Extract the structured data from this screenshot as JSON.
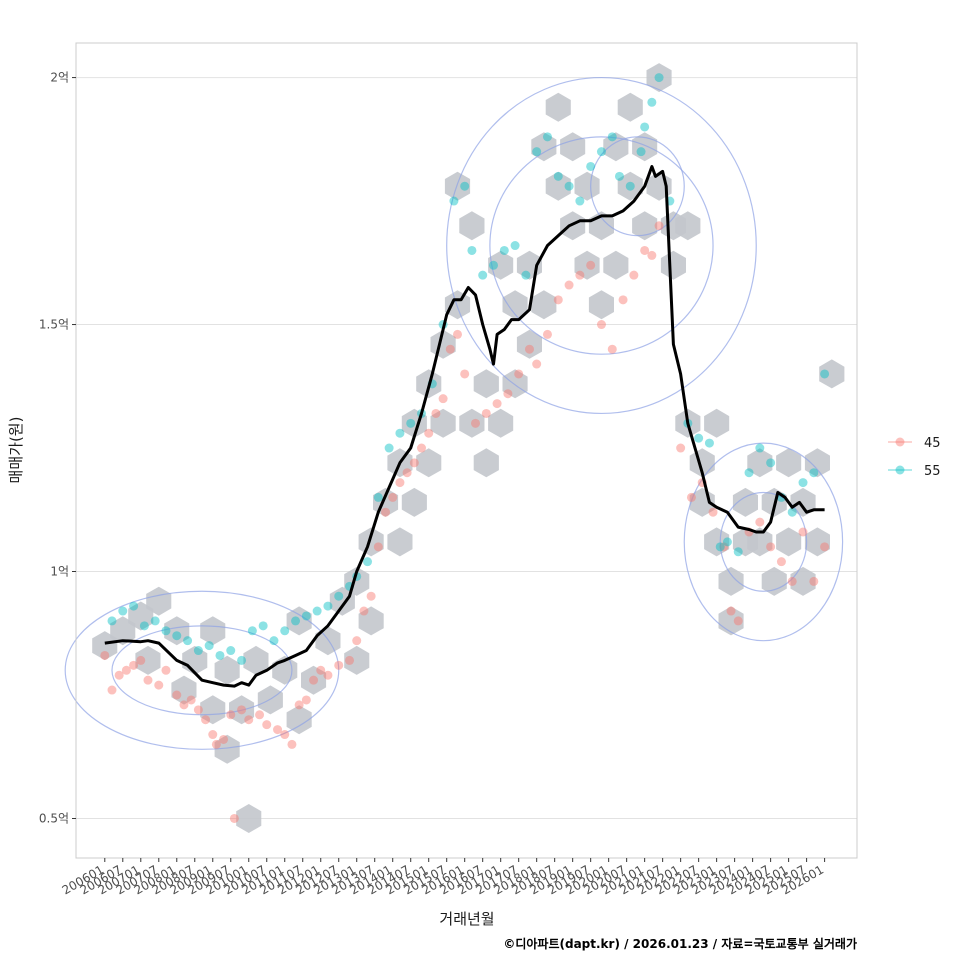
{
  "chart_data": {
    "type": "scatter",
    "title": "",
    "xlabel": "거래년월",
    "ylabel": "매매가(원)",
    "caption": "©디아파트(dapt.kr) / 2026.01.23 / 자료=국토교통부 실거래가",
    "y_unit": "억",
    "ylim": [
      0.42,
      2.07
    ],
    "xlim": [
      2005.2,
      2026.9
    ],
    "y_ticks": [
      {
        "value": 0.5,
        "label": "0.5억"
      },
      {
        "value": 1.0,
        "label": "1억"
      },
      {
        "value": 1.5,
        "label": "1.5억"
      },
      {
        "value": 2.0,
        "label": "2억"
      }
    ],
    "x_ticks": [
      "200601",
      "200607",
      "200701",
      "200707",
      "200801",
      "200807",
      "200901",
      "200907",
      "201001",
      "201007",
      "201101",
      "201107",
      "201201",
      "201207",
      "201301",
      "201307",
      "201401",
      "201407",
      "201501",
      "201507",
      "201601",
      "201607",
      "201701",
      "201707",
      "201801",
      "201807",
      "201901",
      "201907",
      "202001",
      "202007",
      "202101",
      "202107",
      "202201",
      "202207",
      "202301",
      "202307",
      "202401",
      "202407",
      "202501",
      "202507",
      "202601"
    ],
    "legend": {
      "position": "right",
      "items": [
        {
          "name": "45",
          "color": "#F8766D"
        },
        {
          "name": "55",
          "color": "#00BFC4"
        }
      ]
    },
    "colors": {
      "hex": "#c3c7cc",
      "contour": "#8fa2e6",
      "trend": "#000000",
      "grid": "#e2e2e2",
      "panel_border": "#cccccc",
      "highlight": "#cfe9ff"
    },
    "trend_line": {
      "name": "moving-average",
      "x": [
        2006.0,
        2006.5,
        2007.0,
        2007.2,
        2007.5,
        2008.0,
        2008.3,
        2008.7,
        2009.0,
        2009.3,
        2009.6,
        2009.8,
        2010.0,
        2010.2,
        2010.5,
        2010.8,
        2011.0,
        2011.3,
        2011.6,
        2011.9,
        2012.2,
        2012.5,
        2012.8,
        2013.0,
        2013.3,
        2013.6,
        2013.9,
        2014.2,
        2014.5,
        2014.8,
        2015.1,
        2015.3,
        2015.5,
        2015.7,
        2015.9,
        2016.1,
        2016.3,
        2016.5,
        2016.7,
        2016.8,
        2016.9,
        2017.1,
        2017.3,
        2017.5,
        2017.8,
        2018.0,
        2018.3,
        2018.6,
        2018.9,
        2019.2,
        2019.5,
        2019.8,
        2020.1,
        2020.4,
        2020.7,
        2021.0,
        2021.1,
        2021.2,
        2021.3,
        2021.5,
        2021.6,
        2021.8,
        2022.0,
        2022.2,
        2022.4,
        2022.6,
        2022.8,
        2023.0,
        2023.3,
        2023.6,
        2023.9,
        2024.1,
        2024.3,
        2024.5,
        2024.7,
        2024.9,
        2025.1,
        2025.3,
        2025.5,
        2025.7,
        2026.0
      ],
      "y": [
        0.855,
        0.86,
        0.858,
        0.86,
        0.855,
        0.82,
        0.81,
        0.78,
        0.775,
        0.77,
        0.768,
        0.775,
        0.77,
        0.79,
        0.8,
        0.815,
        0.82,
        0.83,
        0.84,
        0.87,
        0.89,
        0.92,
        0.95,
        1.0,
        1.05,
        1.12,
        1.17,
        1.22,
        1.25,
        1.32,
        1.4,
        1.46,
        1.52,
        1.55,
        1.55,
        1.575,
        1.56,
        1.5,
        1.45,
        1.42,
        1.48,
        1.49,
        1.51,
        1.51,
        1.53,
        1.62,
        1.66,
        1.68,
        1.7,
        1.71,
        1.71,
        1.72,
        1.72,
        1.73,
        1.75,
        1.78,
        1.8,
        1.82,
        1.8,
        1.81,
        1.78,
        1.46,
        1.4,
        1.3,
        1.25,
        1.2,
        1.14,
        1.13,
        1.12,
        1.09,
        1.085,
        1.08,
        1.08,
        1.1,
        1.16,
        1.15,
        1.13,
        1.14,
        1.12,
        1.125,
        1.125
      ]
    },
    "series": [
      {
        "name": "45",
        "points": [
          [
            2006.0,
            0.83
          ],
          [
            2006.2,
            0.76
          ],
          [
            2006.4,
            0.79
          ],
          [
            2006.6,
            0.8
          ],
          [
            2006.8,
            0.81
          ],
          [
            2007.0,
            0.82
          ],
          [
            2007.2,
            0.78
          ],
          [
            2007.5,
            0.77
          ],
          [
            2007.7,
            0.8
          ],
          [
            2008.0,
            0.75
          ],
          [
            2008.2,
            0.73
          ],
          [
            2008.4,
            0.74
          ],
          [
            2008.6,
            0.72
          ],
          [
            2008.8,
            0.7
          ],
          [
            2009.0,
            0.67
          ],
          [
            2009.1,
            0.65
          ],
          [
            2009.3,
            0.66
          ],
          [
            2009.5,
            0.71
          ],
          [
            2009.6,
            0.5
          ],
          [
            2009.8,
            0.72
          ],
          [
            2010.0,
            0.7
          ],
          [
            2010.3,
            0.71
          ],
          [
            2010.5,
            0.69
          ],
          [
            2010.8,
            0.68
          ],
          [
            2011.0,
            0.67
          ],
          [
            2011.2,
            0.65
          ],
          [
            2011.4,
            0.73
          ],
          [
            2011.6,
            0.74
          ],
          [
            2011.8,
            0.78
          ],
          [
            2012.0,
            0.8
          ],
          [
            2012.2,
            0.79
          ],
          [
            2012.5,
            0.81
          ],
          [
            2012.8,
            0.82
          ],
          [
            2013.0,
            0.86
          ],
          [
            2013.2,
            0.92
          ],
          [
            2013.4,
            0.95
          ],
          [
            2013.6,
            1.05
          ],
          [
            2013.8,
            1.12
          ],
          [
            2014.0,
            1.15
          ],
          [
            2014.2,
            1.18
          ],
          [
            2014.4,
            1.2
          ],
          [
            2014.6,
            1.22
          ],
          [
            2014.8,
            1.25
          ],
          [
            2015.0,
            1.28
          ],
          [
            2015.2,
            1.32
          ],
          [
            2015.4,
            1.35
          ],
          [
            2015.6,
            1.45
          ],
          [
            2015.8,
            1.48
          ],
          [
            2016.0,
            1.4
          ],
          [
            2016.3,
            1.3
          ],
          [
            2016.6,
            1.32
          ],
          [
            2016.9,
            1.34
          ],
          [
            2017.2,
            1.36
          ],
          [
            2017.5,
            1.4
          ],
          [
            2017.8,
            1.45
          ],
          [
            2018.0,
            1.42
          ],
          [
            2018.3,
            1.48
          ],
          [
            2018.6,
            1.55
          ],
          [
            2018.9,
            1.58
          ],
          [
            2019.2,
            1.6
          ],
          [
            2019.5,
            1.62
          ],
          [
            2019.8,
            1.5
          ],
          [
            2020.1,
            1.45
          ],
          [
            2020.4,
            1.55
          ],
          [
            2020.7,
            1.6
          ],
          [
            2021.0,
            1.65
          ],
          [
            2021.2,
            1.64
          ],
          [
            2021.4,
            1.7
          ],
          [
            2022.0,
            1.25
          ],
          [
            2022.3,
            1.15
          ],
          [
            2022.6,
            1.18
          ],
          [
            2022.9,
            1.12
          ],
          [
            2023.2,
            1.05
          ],
          [
            2023.4,
            0.92
          ],
          [
            2023.6,
            0.9
          ],
          [
            2023.9,
            1.08
          ],
          [
            2024.2,
            1.1
          ],
          [
            2024.5,
            1.05
          ],
          [
            2024.8,
            1.02
          ],
          [
            2025.1,
            0.98
          ],
          [
            2025.4,
            1.08
          ],
          [
            2025.7,
            0.98
          ],
          [
            2026.0,
            1.05
          ]
        ]
      },
      {
        "name": "55",
        "points": [
          [
            2006.2,
            0.9
          ],
          [
            2006.5,
            0.92
          ],
          [
            2006.8,
            0.93
          ],
          [
            2007.1,
            0.89
          ],
          [
            2007.4,
            0.9
          ],
          [
            2007.7,
            0.88
          ],
          [
            2008.0,
            0.87
          ],
          [
            2008.3,
            0.86
          ],
          [
            2008.6,
            0.84
          ],
          [
            2008.9,
            0.85
          ],
          [
            2009.2,
            0.83
          ],
          [
            2009.5,
            0.84
          ],
          [
            2009.8,
            0.82
          ],
          [
            2010.1,
            0.88
          ],
          [
            2010.4,
            0.89
          ],
          [
            2010.7,
            0.86
          ],
          [
            2011.0,
            0.88
          ],
          [
            2011.3,
            0.9
          ],
          [
            2011.6,
            0.91
          ],
          [
            2011.9,
            0.92
          ],
          [
            2012.2,
            0.93
          ],
          [
            2012.5,
            0.95
          ],
          [
            2012.8,
            0.97
          ],
          [
            2013.0,
            0.99
          ],
          [
            2013.3,
            1.02
          ],
          [
            2013.6,
            1.15
          ],
          [
            2013.9,
            1.25
          ],
          [
            2014.2,
            1.28
          ],
          [
            2014.5,
            1.3
          ],
          [
            2014.8,
            1.32
          ],
          [
            2015.1,
            1.38
          ],
          [
            2015.4,
            1.5
          ],
          [
            2015.7,
            1.75
          ],
          [
            2016.0,
            1.78
          ],
          [
            2016.2,
            1.65
          ],
          [
            2016.5,
            1.6
          ],
          [
            2016.8,
            1.62
          ],
          [
            2017.1,
            1.65
          ],
          [
            2017.4,
            1.66
          ],
          [
            2017.7,
            1.6
          ],
          [
            2018.0,
            1.85
          ],
          [
            2018.3,
            1.88
          ],
          [
            2018.6,
            1.8
          ],
          [
            2018.9,
            1.78
          ],
          [
            2019.2,
            1.75
          ],
          [
            2019.5,
            1.82
          ],
          [
            2019.8,
            1.85
          ],
          [
            2020.1,
            1.88
          ],
          [
            2020.3,
            1.8
          ],
          [
            2020.6,
            1.78
          ],
          [
            2020.9,
            1.85
          ],
          [
            2021.0,
            1.9
          ],
          [
            2021.2,
            1.95
          ],
          [
            2021.4,
            2.0
          ],
          [
            2021.7,
            1.75
          ],
          [
            2022.2,
            1.3
          ],
          [
            2022.5,
            1.27
          ],
          [
            2022.8,
            1.26
          ],
          [
            2023.1,
            1.05
          ],
          [
            2023.3,
            1.06
          ],
          [
            2023.6,
            1.04
          ],
          [
            2023.9,
            1.2
          ],
          [
            2024.2,
            1.25
          ],
          [
            2024.5,
            1.22
          ],
          [
            2024.8,
            1.15
          ],
          [
            2025.1,
            1.12
          ],
          [
            2025.4,
            1.18
          ],
          [
            2025.7,
            1.2
          ],
          [
            2026.0,
            1.4
          ]
        ]
      }
    ],
    "hex_bins": [
      [
        2006.0,
        0.85
      ],
      [
        2006.5,
        0.88
      ],
      [
        2007.0,
        0.91
      ],
      [
        2007.2,
        0.82
      ],
      [
        2007.5,
        0.94
      ],
      [
        2008.0,
        0.88
      ],
      [
        2008.5,
        0.82
      ],
      [
        2008.2,
        0.76
      ],
      [
        2009.0,
        0.88
      ],
      [
        2009.4,
        0.8
      ],
      [
        2009.0,
        0.72
      ],
      [
        2009.4,
        0.64
      ],
      [
        2009.8,
        0.72
      ],
      [
        2010.0,
        0.5
      ],
      [
        2010.2,
        0.82
      ],
      [
        2010.6,
        0.74
      ],
      [
        2011.0,
        0.8
      ],
      [
        2011.4,
        0.9
      ],
      [
        2011.4,
        0.7
      ],
      [
        2011.8,
        0.78
      ],
      [
        2012.2,
        0.86
      ],
      [
        2012.6,
        0.94
      ],
      [
        2013.0,
        0.98
      ],
      [
        2013.0,
        0.82
      ],
      [
        2013.4,
        0.9
      ],
      [
        2013.4,
        1.06
      ],
      [
        2013.8,
        1.14
      ],
      [
        2014.2,
        1.22
      ],
      [
        2014.2,
        1.06
      ],
      [
        2014.6,
        1.3
      ],
      [
        2014.6,
        1.14
      ],
      [
        2015.0,
        1.38
      ],
      [
        2015.0,
        1.22
      ],
      [
        2015.4,
        1.46
      ],
      [
        2015.4,
        1.3
      ],
      [
        2015.8,
        1.54
      ],
      [
        2015.8,
        1.78
      ],
      [
        2016.2,
        1.7
      ],
      [
        2016.2,
        1.3
      ],
      [
        2016.6,
        1.22
      ],
      [
        2016.6,
        1.38
      ],
      [
        2017.0,
        1.3
      ],
      [
        2017.0,
        1.62
      ],
      [
        2017.4,
        1.54
      ],
      [
        2017.4,
        1.38
      ],
      [
        2017.8,
        1.62
      ],
      [
        2017.8,
        1.46
      ],
      [
        2018.2,
        1.54
      ],
      [
        2018.2,
        1.86
      ],
      [
        2018.6,
        1.78
      ],
      [
        2018.6,
        1.94
      ],
      [
        2019.0,
        1.7
      ],
      [
        2019.0,
        1.86
      ],
      [
        2019.4,
        1.62
      ],
      [
        2019.4,
        1.78
      ],
      [
        2019.8,
        1.54
      ],
      [
        2019.8,
        1.7
      ],
      [
        2020.2,
        1.86
      ],
      [
        2020.2,
        1.62
      ],
      [
        2020.6,
        1.94
      ],
      [
        2020.6,
        1.78
      ],
      [
        2021.0,
        1.86
      ],
      [
        2021.0,
        1.7
      ],
      [
        2021.4,
        2.0
      ],
      [
        2021.4,
        1.78
      ],
      [
        2021.8,
        1.62
      ],
      [
        2021.8,
        1.7
      ],
      [
        2022.2,
        1.7
      ],
      [
        2022.2,
        1.3
      ],
      [
        2022.6,
        1.14
      ],
      [
        2022.6,
        1.22
      ],
      [
        2023.0,
        1.06
      ],
      [
        2023.0,
        1.3
      ],
      [
        2023.4,
        0.98
      ],
      [
        2023.4,
        0.9
      ],
      [
        2023.8,
        1.06
      ],
      [
        2023.8,
        1.14
      ],
      [
        2024.2,
        1.22
      ],
      [
        2024.2,
        1.06
      ],
      [
        2024.6,
        0.98
      ],
      [
        2024.6,
        1.14
      ],
      [
        2025.0,
        1.06
      ],
      [
        2025.0,
        1.22
      ],
      [
        2025.4,
        1.14
      ],
      [
        2025.4,
        0.98
      ],
      [
        2025.8,
        1.06
      ],
      [
        2025.8,
        1.22
      ],
      [
        2026.2,
        1.4
      ]
    ],
    "contour_levels": [
      {
        "cx": 2019.8,
        "cy": 1.66,
        "rx": 3.1,
        "ry": 0.22
      },
      {
        "cx": 2019.8,
        "cy": 1.66,
        "rx": 4.3,
        "ry": 0.34
      },
      {
        "cx": 2020.8,
        "cy": 1.78,
        "rx": 1.3,
        "ry": 0.1
      },
      {
        "cx": 2024.3,
        "cy": 1.06,
        "rx": 1.2,
        "ry": 0.1
      },
      {
        "cx": 2024.3,
        "cy": 1.06,
        "rx": 2.2,
        "ry": 0.2
      },
      {
        "cx": 2008.7,
        "cy": 0.8,
        "rx": 2.5,
        "ry": 0.09
      },
      {
        "cx": 2008.7,
        "cy": 0.8,
        "rx": 3.8,
        "ry": 0.16
      }
    ]
  }
}
